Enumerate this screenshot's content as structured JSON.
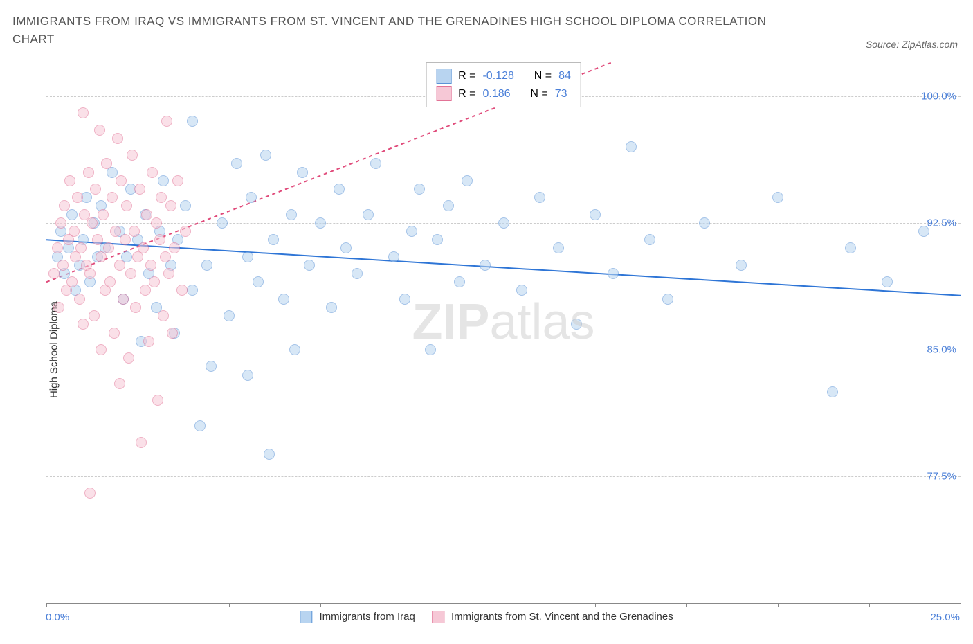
{
  "title": "IMMIGRANTS FROM IRAQ VS IMMIGRANTS FROM ST. VINCENT AND THE GRENADINES HIGH SCHOOL DIPLOMA CORRELATION CHART",
  "source": "Source: ZipAtlas.com",
  "watermark_bold": "ZIP",
  "watermark_light": "atlas",
  "yaxis_label": "High School Diploma",
  "chart": {
    "type": "scatter",
    "xlim": [
      0,
      25
    ],
    "ylim": [
      70,
      102
    ],
    "yticks": [
      77.5,
      85.0,
      92.5,
      100.0
    ],
    "ytick_labels": [
      "77.5%",
      "85.0%",
      "92.5%",
      "100.0%"
    ],
    "xtick_positions": [
      0,
      2.5,
      5,
      7.5,
      10,
      12.5,
      15,
      17.5,
      20,
      22.5,
      25
    ],
    "xtick_labels_shown": {
      "0": "0.0%",
      "25": "25.0%"
    },
    "grid_color": "#cccccc",
    "axis_color": "#888888",
    "background_color": "#ffffff",
    "marker_radius": 8,
    "marker_opacity": 0.55,
    "series": [
      {
        "name": "Immigrants from Iraq",
        "fill": "#b8d4f0",
        "stroke": "#5b93d6",
        "r_value": "-0.128",
        "n_value": "84",
        "trend": {
          "color": "#2e75d6",
          "width": 2,
          "dash": "none",
          "y_at_x0": 91.5,
          "y_at_xmax": 88.2
        },
        "points": [
          [
            0.3,
            90.5
          ],
          [
            0.4,
            92.0
          ],
          [
            0.5,
            89.5
          ],
          [
            0.6,
            91.0
          ],
          [
            0.7,
            93.0
          ],
          [
            0.8,
            88.5
          ],
          [
            0.9,
            90.0
          ],
          [
            1.0,
            91.5
          ],
          [
            1.1,
            94.0
          ],
          [
            1.2,
            89.0
          ],
          [
            1.3,
            92.5
          ],
          [
            1.4,
            90.5
          ],
          [
            1.5,
            93.5
          ],
          [
            1.6,
            91.0
          ],
          [
            1.8,
            95.5
          ],
          [
            2.0,
            92.0
          ],
          [
            2.1,
            88.0
          ],
          [
            2.2,
            90.5
          ],
          [
            2.3,
            94.5
          ],
          [
            2.5,
            91.5
          ],
          [
            2.6,
            85.5
          ],
          [
            2.7,
            93.0
          ],
          [
            2.8,
            89.5
          ],
          [
            3.0,
            87.5
          ],
          [
            3.1,
            92.0
          ],
          [
            3.2,
            95.0
          ],
          [
            3.4,
            90.0
          ],
          [
            3.5,
            86.0
          ],
          [
            3.6,
            91.5
          ],
          [
            3.8,
            93.5
          ],
          [
            4.0,
            98.5
          ],
          [
            4.0,
            88.5
          ],
          [
            4.2,
            80.5
          ],
          [
            4.4,
            90.0
          ],
          [
            4.5,
            84.0
          ],
          [
            4.8,
            92.5
          ],
          [
            5.0,
            87.0
          ],
          [
            5.2,
            96.0
          ],
          [
            5.5,
            90.5
          ],
          [
            5.5,
            83.5
          ],
          [
            5.6,
            94.0
          ],
          [
            5.8,
            89.0
          ],
          [
            6.0,
            96.5
          ],
          [
            6.1,
            78.8
          ],
          [
            6.2,
            91.5
          ],
          [
            6.5,
            88.0
          ],
          [
            6.7,
            93.0
          ],
          [
            6.8,
            85.0
          ],
          [
            7.0,
            95.5
          ],
          [
            7.2,
            90.0
          ],
          [
            7.5,
            92.5
          ],
          [
            7.8,
            87.5
          ],
          [
            8.0,
            94.5
          ],
          [
            8.2,
            91.0
          ],
          [
            8.5,
            89.5
          ],
          [
            8.8,
            93.0
          ],
          [
            9.0,
            96.0
          ],
          [
            9.5,
            90.5
          ],
          [
            9.8,
            88.0
          ],
          [
            10.0,
            92.0
          ],
          [
            10.2,
            94.5
          ],
          [
            10.5,
            85.0
          ],
          [
            10.7,
            91.5
          ],
          [
            11.0,
            93.5
          ],
          [
            11.3,
            89.0
          ],
          [
            11.5,
            95.0
          ],
          [
            12.0,
            90.0
          ],
          [
            12.5,
            92.5
          ],
          [
            13.0,
            88.5
          ],
          [
            13.5,
            94.0
          ],
          [
            14.0,
            91.0
          ],
          [
            14.5,
            86.5
          ],
          [
            15.0,
            93.0
          ],
          [
            15.5,
            89.5
          ],
          [
            16.0,
            97.0
          ],
          [
            16.5,
            91.5
          ],
          [
            17.0,
            88.0
          ],
          [
            18.0,
            92.5
          ],
          [
            19.0,
            90.0
          ],
          [
            20.0,
            94.0
          ],
          [
            21.5,
            82.5
          ],
          [
            22.0,
            91.0
          ],
          [
            23.0,
            89.0
          ],
          [
            24.0,
            92.0
          ]
        ]
      },
      {
        "name": "Immigrants from St. Vincent and the Grenadines",
        "fill": "#f6c8d6",
        "stroke": "#e27396",
        "r_value": "0.186",
        "n_value": "73",
        "trend": {
          "color": "#e04a7a",
          "width": 2,
          "dash": "5,5",
          "y_at_x0": 89.0,
          "y_at_xmax": 110.0
        },
        "points": [
          [
            0.2,
            89.5
          ],
          [
            0.3,
            91.0
          ],
          [
            0.35,
            87.5
          ],
          [
            0.4,
            92.5
          ],
          [
            0.45,
            90.0
          ],
          [
            0.5,
            93.5
          ],
          [
            0.55,
            88.5
          ],
          [
            0.6,
            91.5
          ],
          [
            0.65,
            95.0
          ],
          [
            0.7,
            89.0
          ],
          [
            0.75,
            92.0
          ],
          [
            0.8,
            90.5
          ],
          [
            0.85,
            94.0
          ],
          [
            0.9,
            88.0
          ],
          [
            0.95,
            91.0
          ],
          [
            1.0,
            99.0
          ],
          [
            1.0,
            86.5
          ],
          [
            1.05,
            93.0
          ],
          [
            1.1,
            90.0
          ],
          [
            1.15,
            95.5
          ],
          [
            1.2,
            89.5
          ],
          [
            1.25,
            92.5
          ],
          [
            1.3,
            87.0
          ],
          [
            1.35,
            94.5
          ],
          [
            1.4,
            91.5
          ],
          [
            1.45,
            98.0
          ],
          [
            1.5,
            85.0
          ],
          [
            1.5,
            90.5
          ],
          [
            1.55,
            93.0
          ],
          [
            1.6,
            88.5
          ],
          [
            1.65,
            96.0
          ],
          [
            1.7,
            91.0
          ],
          [
            1.75,
            89.0
          ],
          [
            1.8,
            94.0
          ],
          [
            1.85,
            86.0
          ],
          [
            1.9,
            92.0
          ],
          [
            1.95,
            97.5
          ],
          [
            2.0,
            83.0
          ],
          [
            2.0,
            90.0
          ],
          [
            2.05,
            95.0
          ],
          [
            2.1,
            88.0
          ],
          [
            2.15,
            91.5
          ],
          [
            2.2,
            93.5
          ],
          [
            2.25,
            84.5
          ],
          [
            2.3,
            89.5
          ],
          [
            2.35,
            96.5
          ],
          [
            2.4,
            92.0
          ],
          [
            2.45,
            87.5
          ],
          [
            2.5,
            90.5
          ],
          [
            2.55,
            94.5
          ],
          [
            2.6,
            79.5
          ],
          [
            2.65,
            91.0
          ],
          [
            2.7,
            88.5
          ],
          [
            2.75,
            93.0
          ],
          [
            2.8,
            85.5
          ],
          [
            2.85,
            90.0
          ],
          [
            2.9,
            95.5
          ],
          [
            2.95,
            89.0
          ],
          [
            3.0,
            92.5
          ],
          [
            3.05,
            82.0
          ],
          [
            3.1,
            91.5
          ],
          [
            3.15,
            94.0
          ],
          [
            3.2,
            87.0
          ],
          [
            3.25,
            90.5
          ],
          [
            3.3,
            98.5
          ],
          [
            3.35,
            89.5
          ],
          [
            3.4,
            93.5
          ],
          [
            3.45,
            86.0
          ],
          [
            3.5,
            91.0
          ],
          [
            3.6,
            95.0
          ],
          [
            3.7,
            88.5
          ],
          [
            3.8,
            92.0
          ],
          [
            1.2,
            76.5
          ]
        ]
      }
    ]
  },
  "stats_labels": {
    "r": "R =",
    "n": "N ="
  },
  "bottom_legend": [
    {
      "swatch_fill": "#b8d4f0",
      "swatch_stroke": "#5b93d6",
      "label": "Immigrants from Iraq"
    },
    {
      "swatch_fill": "#f6c8d6",
      "swatch_stroke": "#e27396",
      "label": "Immigrants from St. Vincent and the Grenadines"
    }
  ]
}
